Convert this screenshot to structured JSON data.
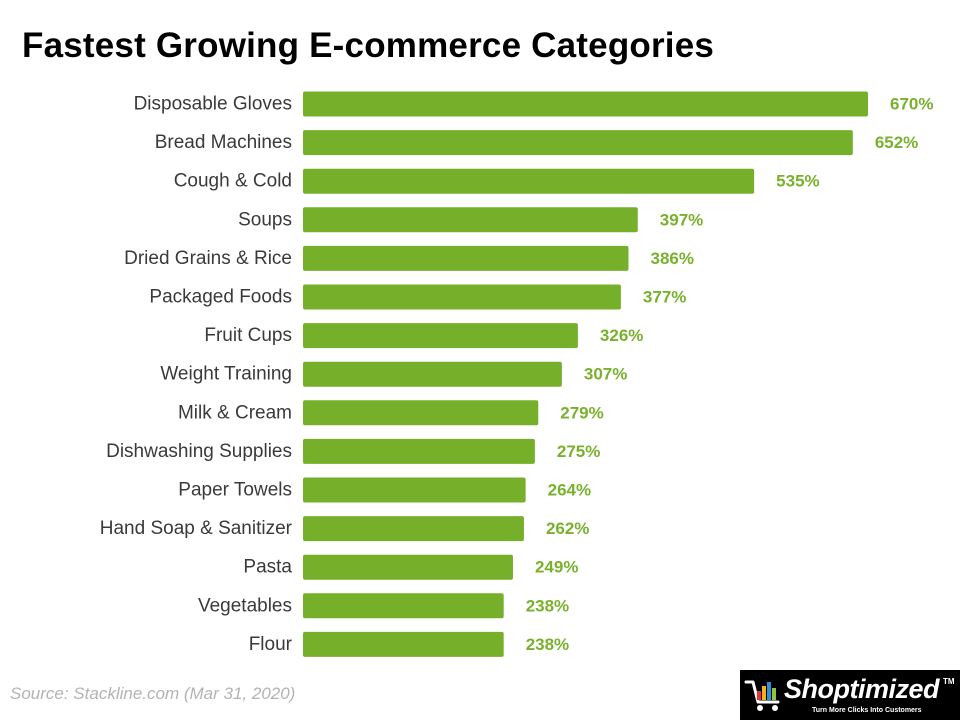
{
  "title": "Fastest Growing E-commerce Categories",
  "source": "Source: Stackline.com (Mar 31, 2020)",
  "logo": {
    "name": "Shoptimized",
    "trademark": "TM",
    "tagline": "Turn More Clicks Into Customers"
  },
  "colors": {
    "bar": "#76b02a",
    "value_label": "#79b12e",
    "category_label": "#3a3a3a",
    "title": "#000000",
    "source": "#b3b3b3"
  },
  "chart_data": {
    "type": "bar",
    "orientation": "horizontal",
    "title": "Fastest Growing E-commerce Categories",
    "xlabel": "",
    "ylabel": "",
    "grid": false,
    "legend": "none",
    "value_suffix": "%",
    "xlim": [
      0,
      670
    ],
    "categories": [
      "Disposable Gloves",
      "Bread Machines",
      "Cough & Cold",
      "Soups",
      "Dried Grains & Rice",
      "Packaged Foods",
      "Fruit Cups",
      "Weight Training",
      "Milk & Cream",
      "Dishwashing Supplies",
      "Paper Towels",
      "Hand Soap & Sanitizer",
      "Pasta",
      "Vegetables",
      "Flour"
    ],
    "values": [
      670,
      652,
      535,
      397,
      386,
      377,
      326,
      307,
      279,
      275,
      264,
      262,
      249,
      238,
      238
    ],
    "value_labels": [
      "670%",
      "652%",
      "535%",
      "397%",
      "386%",
      "377%",
      "326%",
      "307%",
      "279%",
      "275%",
      "264%",
      "262%",
      "249%",
      "238%",
      "238%"
    ]
  }
}
